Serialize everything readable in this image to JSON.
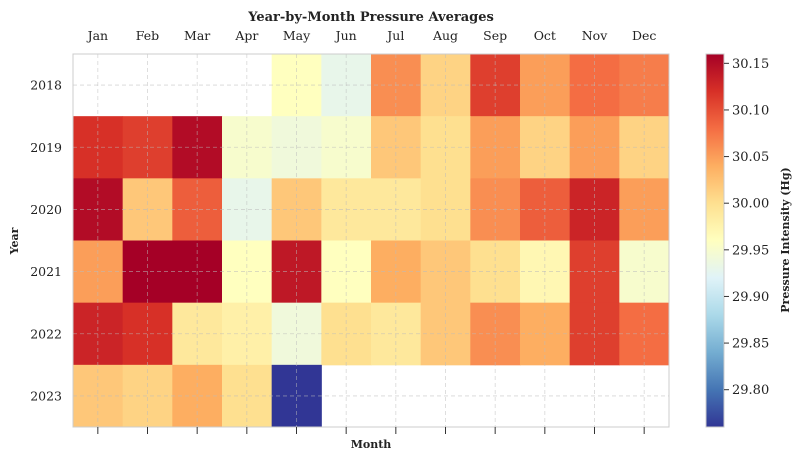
{
  "chart_data": {
    "type": "heatmap",
    "title": "Year-by-Month Pressure Averages",
    "xlabel": "Month",
    "ylabel": "Year",
    "colorbar_label": "Pressure Intensity (Hg)",
    "colormap": "RdYlBu_r",
    "x_categories": [
      "Jan",
      "Feb",
      "Mar",
      "Apr",
      "May",
      "Jun",
      "Jul",
      "Aug",
      "Sep",
      "Oct",
      "Nov",
      "Dec"
    ],
    "y_categories": [
      "2018",
      "2019",
      "2020",
      "2021",
      "2022",
      "2023"
    ],
    "values": [
      [
        null,
        null,
        null,
        null,
        29.96,
        29.93,
        30.06,
        30.01,
        30.11,
        30.05,
        30.08,
        30.07
      ],
      [
        30.12,
        30.11,
        30.15,
        29.95,
        29.94,
        29.95,
        30.02,
        30.0,
        30.05,
        30.01,
        30.05,
        30.01
      ],
      [
        30.15,
        30.02,
        30.09,
        29.93,
        30.02,
        29.99,
        29.99,
        30.0,
        30.06,
        30.09,
        30.13,
        30.05
      ],
      [
        30.05,
        30.16,
        30.16,
        29.96,
        30.14,
        29.96,
        30.04,
        30.02,
        30.0,
        29.97,
        30.11,
        29.95
      ],
      [
        30.13,
        30.12,
        29.99,
        29.98,
        29.94,
        30.0,
        29.99,
        30.02,
        30.06,
        30.04,
        30.11,
        30.08
      ],
      [
        30.02,
        30.01,
        30.04,
        30.0,
        29.76,
        null,
        null,
        null,
        null,
        null,
        null,
        null
      ]
    ],
    "vmin": 29.76,
    "vmax": 30.16,
    "colorbar_ticks": [
      "29.80",
      "29.85",
      "29.90",
      "29.95",
      "30.00",
      "30.05",
      "30.10",
      "30.15"
    ],
    "grid": true,
    "colors": [
      "#313695",
      "#4575b4",
      "#74add1",
      "#abd9e9",
      "#e0f3f8",
      "#ffffbf",
      "#fee090",
      "#fdae61",
      "#f46d43",
      "#d73027",
      "#a50026"
    ]
  }
}
